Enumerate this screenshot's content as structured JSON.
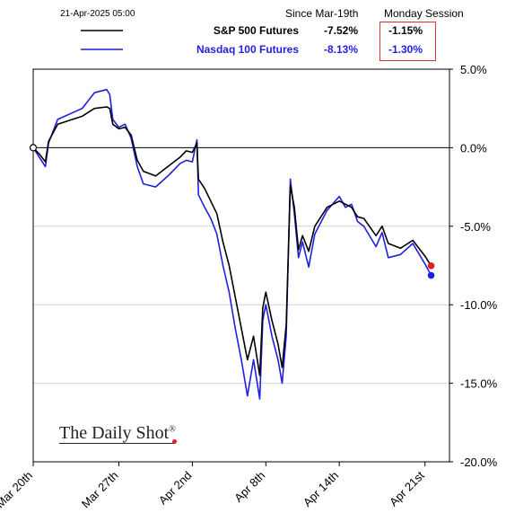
{
  "header": {
    "timestamp": "21-Apr-2025 05:00",
    "col1_title": "Since Mar-19th",
    "col2_title": "Monday Session"
  },
  "brand": {
    "name": "The Daily Shot",
    "mark": "®"
  },
  "chart_data": {
    "type": "line",
    "title": "",
    "xlabel": "",
    "ylabel": "",
    "ylim": [
      -20,
      5
    ],
    "y_ticks": [
      5,
      0,
      -5,
      -10,
      -15,
      -20
    ],
    "y_tick_labels": [
      "5.0%",
      "0.0%",
      "-5.0%",
      "-10.0%",
      "-15.0%",
      "-20.0%"
    ],
    "y_axis_side": "right",
    "x_range": [
      "2025-03-20",
      "2025-04-23"
    ],
    "x_ticks": [
      "2025-03-20",
      "2025-03-27",
      "2025-04-02",
      "2025-04-08",
      "2025-04-14",
      "2025-04-21"
    ],
    "x_tick_labels": [
      "Mar 20th",
      "Mar 27th",
      "Apr 2nd",
      "Apr 8th",
      "Apr 14th",
      "Apr 21st"
    ],
    "grid": "horizontal",
    "legend": "top",
    "series": [
      {
        "name": "S&P 500 Futures",
        "since": "-7.52%",
        "session": "-1.15%",
        "color": "#000000",
        "end_marker_color": "#e0202a",
        "points": [
          [
            "2025-03-20",
            0.0
          ],
          [
            "2025-03-20T12:00",
            -0.4
          ],
          [
            "2025-03-21",
            -0.9
          ],
          [
            "2025-03-21T06:00",
            0.4
          ],
          [
            "2025-03-22",
            1.5
          ],
          [
            "2025-03-24",
            2.0
          ],
          [
            "2025-03-25",
            2.5
          ],
          [
            "2025-03-26",
            2.6
          ],
          [
            "2025-03-26T06:00",
            2.5
          ],
          [
            "2025-03-26T12:00",
            1.5
          ],
          [
            "2025-03-27",
            1.2
          ],
          [
            "2025-03-27T12:00",
            1.3
          ],
          [
            "2025-03-28",
            0.8
          ],
          [
            "2025-03-28T12:00",
            -0.8
          ],
          [
            "2025-03-29",
            -1.5
          ],
          [
            "2025-03-30",
            -1.8
          ],
          [
            "2025-03-31",
            -1.2
          ],
          [
            "2025-04-01",
            -0.6
          ],
          [
            "2025-04-01T12:00",
            -0.2
          ],
          [
            "2025-04-02",
            -0.3
          ],
          [
            "2025-04-02T09:00",
            0.3
          ],
          [
            "2025-04-02T12:00",
            -2.0
          ],
          [
            "2025-04-03",
            -2.6
          ],
          [
            "2025-04-03T12:00",
            -3.4
          ],
          [
            "2025-04-04",
            -4.2
          ],
          [
            "2025-04-04T12:00",
            -6.0
          ],
          [
            "2025-04-05",
            -7.5
          ],
          [
            "2025-04-05T12:00",
            -9.5
          ],
          [
            "2025-04-06",
            -11.5
          ],
          [
            "2025-04-06T12:00",
            -13.5
          ],
          [
            "2025-04-07",
            -12.0
          ],
          [
            "2025-04-07T12:00",
            -14.5
          ],
          [
            "2025-04-07T18:00",
            -10.2
          ],
          [
            "2025-04-08",
            -9.2
          ],
          [
            "2025-04-08T12:00",
            -11.0
          ],
          [
            "2025-04-09",
            -12.5
          ],
          [
            "2025-04-09T08:00",
            -14.0
          ],
          [
            "2025-04-09T16:00",
            -11.3
          ],
          [
            "2025-04-10",
            -2.4
          ],
          [
            "2025-04-10T08:00",
            -3.8
          ],
          [
            "2025-04-10T16:00",
            -6.5
          ],
          [
            "2025-04-11",
            -5.6
          ],
          [
            "2025-04-11T12:00",
            -6.6
          ],
          [
            "2025-04-12",
            -5.0
          ],
          [
            "2025-04-13",
            -3.8
          ],
          [
            "2025-04-14",
            -3.4
          ],
          [
            "2025-04-14T12:00",
            -3.6
          ],
          [
            "2025-04-15",
            -3.8
          ],
          [
            "2025-04-15T12:00",
            -4.4
          ],
          [
            "2025-04-16",
            -4.5
          ],
          [
            "2025-04-17",
            -5.6
          ],
          [
            "2025-04-17T12:00",
            -5.0
          ],
          [
            "2025-04-18",
            -6.1
          ],
          [
            "2025-04-19",
            -6.4
          ],
          [
            "2025-04-20",
            -5.9
          ],
          [
            "2025-04-21",
            -6.9
          ],
          [
            "2025-04-21T12:00",
            -7.52
          ]
        ]
      },
      {
        "name": "Nasdaq 100 Futures",
        "since": "-8.13%",
        "session": "-1.30%",
        "color": "#1f1fe0",
        "end_marker_color": "#1f1fe0",
        "points": [
          [
            "2025-03-20",
            0.0
          ],
          [
            "2025-03-20T12:00",
            -0.6
          ],
          [
            "2025-03-21",
            -1.2
          ],
          [
            "2025-03-21T06:00",
            0.3
          ],
          [
            "2025-03-22",
            1.8
          ],
          [
            "2025-03-24",
            2.5
          ],
          [
            "2025-03-25",
            3.5
          ],
          [
            "2025-03-26",
            3.7
          ],
          [
            "2025-03-26T06:00",
            3.4
          ],
          [
            "2025-03-26T12:00",
            1.8
          ],
          [
            "2025-03-27",
            1.3
          ],
          [
            "2025-03-27T12:00",
            1.5
          ],
          [
            "2025-03-28",
            0.6
          ],
          [
            "2025-03-28T12:00",
            -1.2
          ],
          [
            "2025-03-29",
            -2.3
          ],
          [
            "2025-03-30",
            -2.5
          ],
          [
            "2025-03-31",
            -1.8
          ],
          [
            "2025-04-01",
            -1.0
          ],
          [
            "2025-04-01T12:00",
            -0.8
          ],
          [
            "2025-04-02",
            -0.9
          ],
          [
            "2025-04-02T09:00",
            0.5
          ],
          [
            "2025-04-02T12:00",
            -3.0
          ],
          [
            "2025-04-03",
            -3.8
          ],
          [
            "2025-04-03T12:00",
            -4.5
          ],
          [
            "2025-04-04",
            -5.5
          ],
          [
            "2025-04-04T12:00",
            -7.5
          ],
          [
            "2025-04-05",
            -9.2
          ],
          [
            "2025-04-05T12:00",
            -11.5
          ],
          [
            "2025-04-06",
            -13.5
          ],
          [
            "2025-04-06T12:00",
            -15.8
          ],
          [
            "2025-04-07",
            -13.5
          ],
          [
            "2025-04-07T12:00",
            -16.0
          ],
          [
            "2025-04-07T18:00",
            -11.0
          ],
          [
            "2025-04-08",
            -10.0
          ],
          [
            "2025-04-08T12:00",
            -12.0
          ],
          [
            "2025-04-09",
            -13.5
          ],
          [
            "2025-04-09T08:00",
            -15.0
          ],
          [
            "2025-04-09T16:00",
            -12.0
          ],
          [
            "2025-04-10",
            -2.0
          ],
          [
            "2025-04-10T08:00",
            -4.2
          ],
          [
            "2025-04-10T16:00",
            -7.0
          ],
          [
            "2025-04-11",
            -6.0
          ],
          [
            "2025-04-11T12:00",
            -7.6
          ],
          [
            "2025-04-12",
            -5.5
          ],
          [
            "2025-04-13",
            -4.0
          ],
          [
            "2025-04-14",
            -3.1
          ],
          [
            "2025-04-14T12:00",
            -3.8
          ],
          [
            "2025-04-15",
            -3.6
          ],
          [
            "2025-04-15T12:00",
            -4.7
          ],
          [
            "2025-04-16",
            -5.0
          ],
          [
            "2025-04-17",
            -6.3
          ],
          [
            "2025-04-17T12:00",
            -5.4
          ],
          [
            "2025-04-18",
            -7.0
          ],
          [
            "2025-04-19",
            -6.8
          ],
          [
            "2025-04-20",
            -6.1
          ],
          [
            "2025-04-21",
            -7.4
          ],
          [
            "2025-04-21T12:00",
            -8.13
          ]
        ]
      }
    ]
  }
}
